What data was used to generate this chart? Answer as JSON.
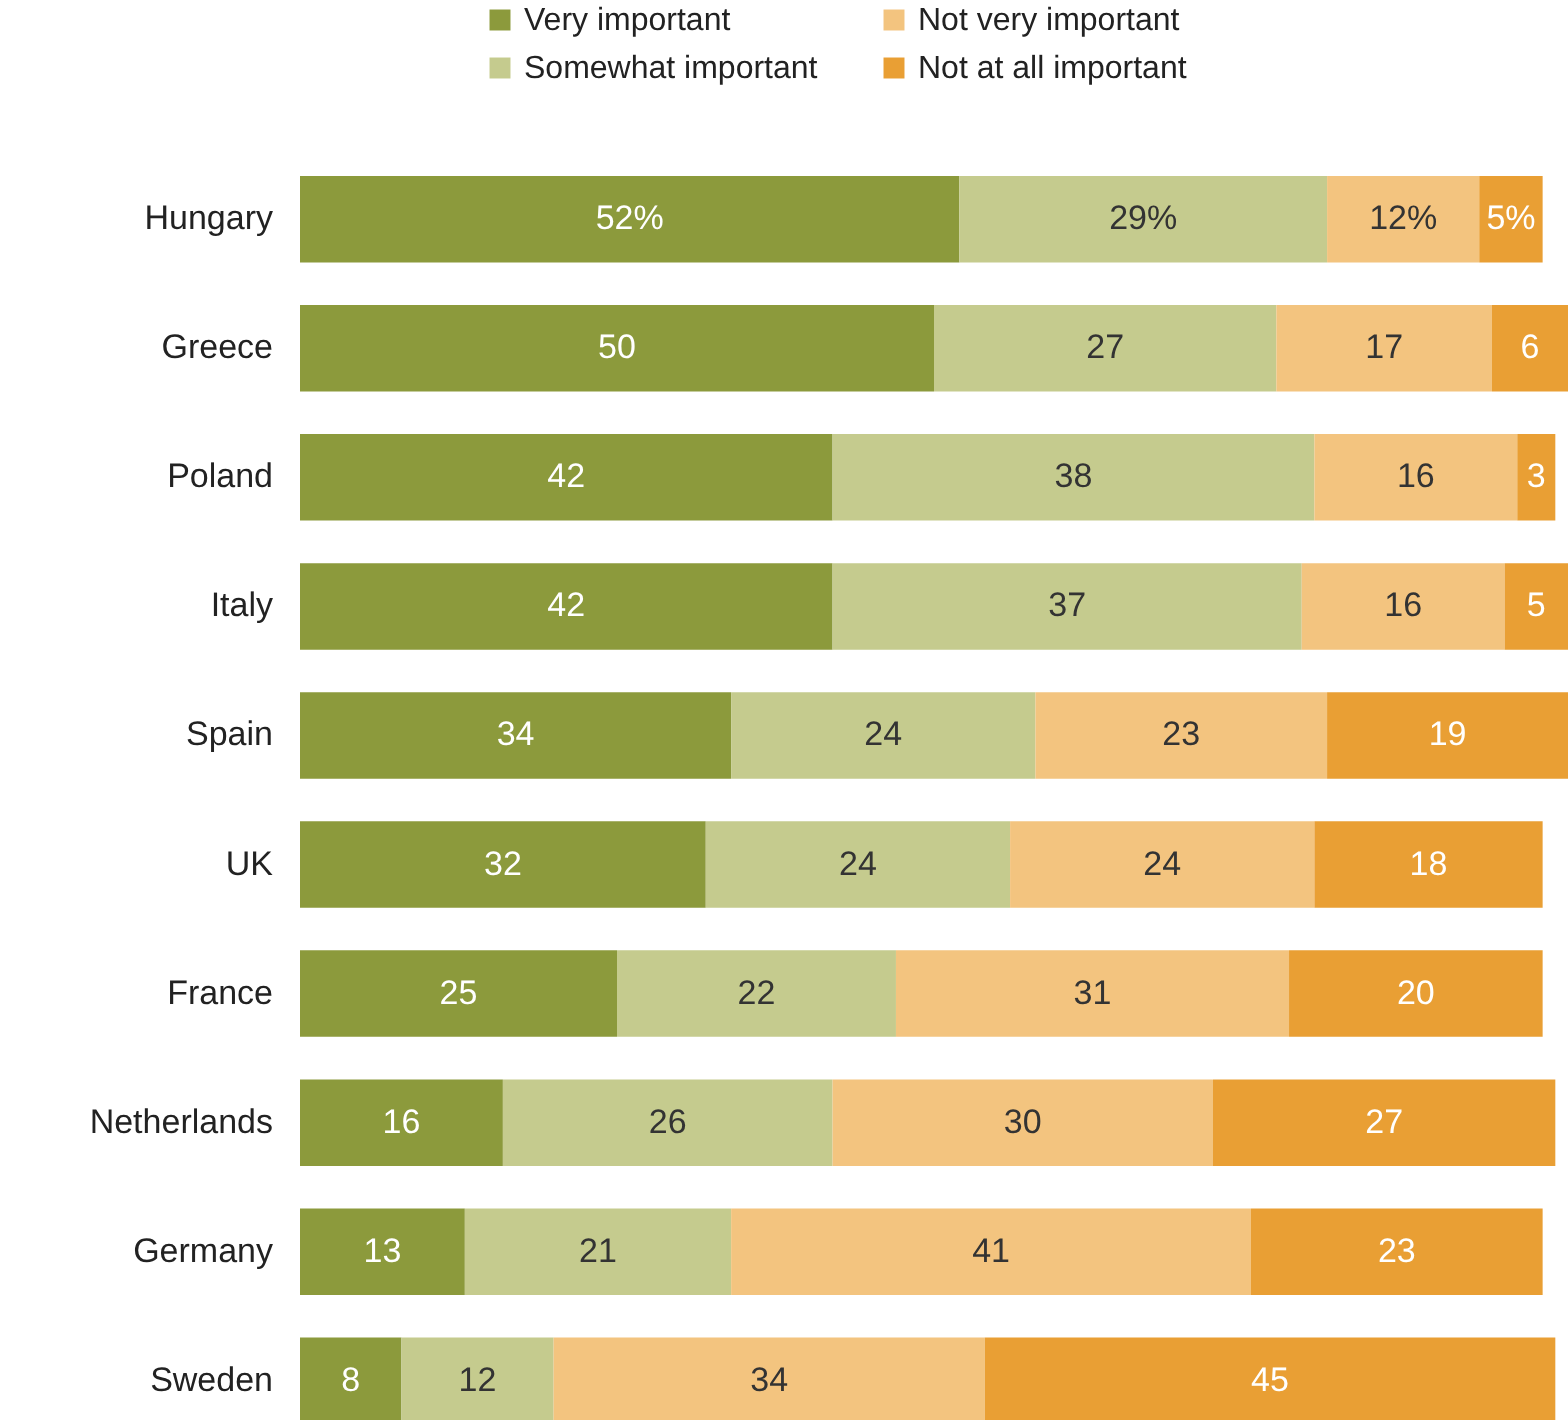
{
  "chart_data": {
    "type": "bar",
    "orientation": "horizontal",
    "stacked": true,
    "legend": "top",
    "categories": [
      "Hungary",
      "Greece",
      "Poland",
      "Italy",
      "Spain",
      "UK",
      "France",
      "Netherlands",
      "Germany",
      "Sweden"
    ],
    "series": [
      {
        "name": "Very important",
        "color": "#8c9a3c",
        "values": [
          52,
          50,
          42,
          42,
          34,
          32,
          25,
          16,
          13,
          8
        ],
        "value_labels": [
          "52%",
          "50",
          "42",
          "42",
          "34",
          "32",
          "25",
          "16",
          "13",
          "8"
        ]
      },
      {
        "name": "Somewhat important",
        "color": "#c5cb8e",
        "values": [
          29,
          27,
          38,
          37,
          24,
          24,
          22,
          26,
          21,
          12
        ],
        "value_labels": [
          "29%",
          "27",
          "38",
          "37",
          "24",
          "24",
          "22",
          "26",
          "21",
          "12"
        ]
      },
      {
        "name": "Not very important",
        "color": "#f3c47f",
        "values": [
          12,
          17,
          16,
          16,
          23,
          24,
          31,
          30,
          41,
          34
        ],
        "value_labels": [
          "12%",
          "17",
          "16",
          "16",
          "23",
          "24",
          "31",
          "30",
          "41",
          "34"
        ]
      },
      {
        "name": "Not at all important",
        "color": "#e99f34",
        "values": [
          5,
          6,
          3,
          5,
          19,
          18,
          20,
          27,
          23,
          45
        ],
        "value_labels": [
          "5%",
          "6",
          "3",
          "5",
          "19",
          "18",
          "20",
          "27",
          "23",
          "45"
        ]
      }
    ]
  }
}
